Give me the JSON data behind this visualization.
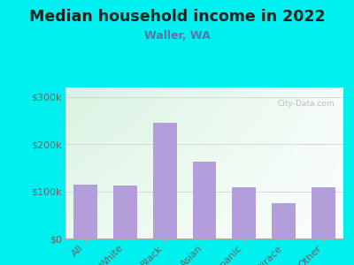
{
  "title": "Median household income in 2022",
  "subtitle": "Waller, WA",
  "categories": [
    "All",
    "White",
    "Black",
    "Asian",
    "Hispanic",
    "Multirace",
    "Other"
  ],
  "values": [
    115000,
    113000,
    245000,
    162000,
    108000,
    75000,
    108000
  ],
  "bar_color": "#b39ddb",
  "background_outer": "#00efef",
  "title_color": "#212121",
  "subtitle_color": "#5577aa",
  "tick_color": "#666666",
  "yticks": [
    0,
    100000,
    200000,
    300000
  ],
  "ytick_labels": [
    "$0",
    "$100k",
    "$200k",
    "$300k"
  ],
  "ylim": [
    0,
    320000
  ],
  "watermark": "City-Data.com",
  "title_fontsize": 12.5,
  "subtitle_fontsize": 9,
  "tick_fontsize": 8
}
